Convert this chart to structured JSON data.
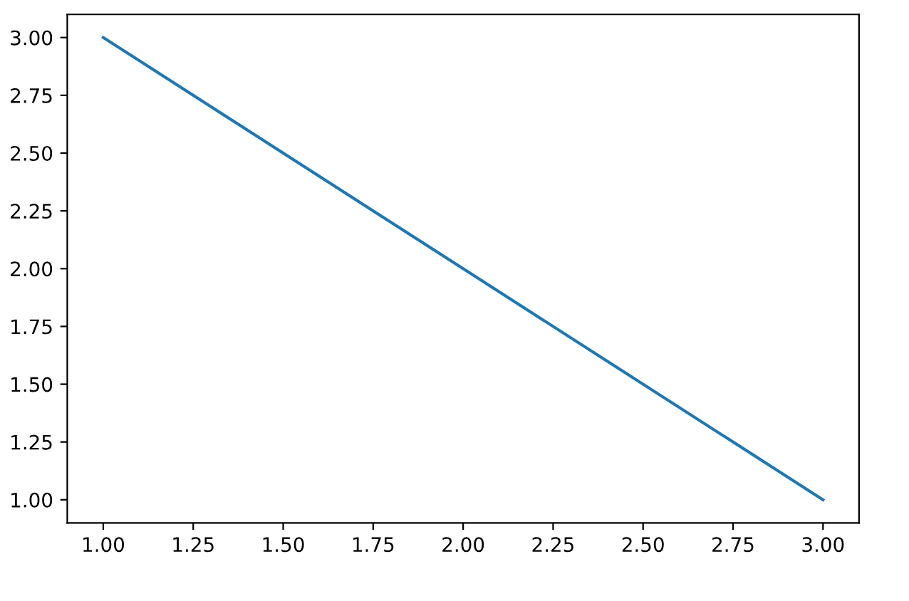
{
  "chart_data": {
    "type": "line",
    "x": [
      1,
      2,
      3
    ],
    "series": [
      {
        "color": "#1f77b4",
        "values": [
          3,
          2,
          1
        ]
      }
    ],
    "xlim": [
      0.9,
      3.1
    ],
    "ylim": [
      0.9,
      3.1
    ],
    "xticks": [
      {
        "value": 1,
        "label": "1.00"
      },
      {
        "value": 1.25,
        "label": "1.25"
      },
      {
        "value": 1.5,
        "label": "1.50"
      },
      {
        "value": 1.75,
        "label": "1.75"
      },
      {
        "value": 2,
        "label": "2.00"
      },
      {
        "value": 2.25,
        "label": "2.25"
      },
      {
        "value": 2.5,
        "label": "2.50"
      },
      {
        "value": 2.75,
        "label": "2.75"
      },
      {
        "value": 3,
        "label": "3.00"
      }
    ],
    "yticks": [
      {
        "value": 1,
        "label": "1.00"
      },
      {
        "value": 1.25,
        "label": "1.25"
      },
      {
        "value": 1.5,
        "label": "1.50"
      },
      {
        "value": 1.75,
        "label": "1.75"
      },
      {
        "value": 2,
        "label": "2.00"
      },
      {
        "value": 2.25,
        "label": "2.25"
      },
      {
        "value": 2.5,
        "label": "2.50"
      },
      {
        "value": 2.75,
        "label": "2.75"
      },
      {
        "value": 3,
        "label": "3.00"
      }
    ]
  }
}
